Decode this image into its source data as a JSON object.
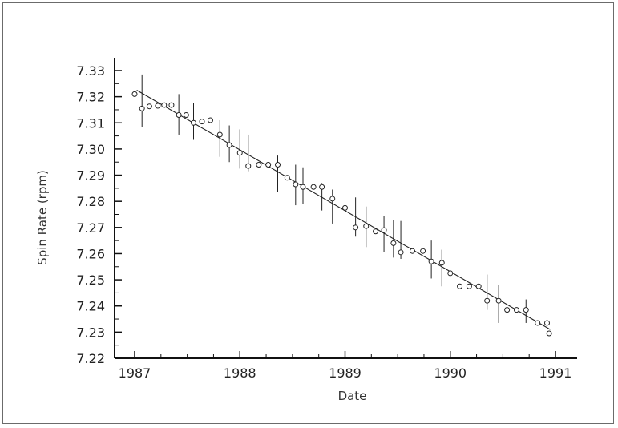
{
  "chart_data": {
    "type": "scatter",
    "title": "",
    "xlabel": "Date",
    "ylabel": "Spin Rate (rpm)",
    "xlim": [
      1986.9,
      1991.2
    ],
    "ylim": [
      7.22,
      7.335
    ],
    "x_ticks": [
      1987,
      1988,
      1989,
      1990,
      1991
    ],
    "x_tick_labels": [
      "1987",
      "1988",
      "1989",
      "1990",
      "1991"
    ],
    "y_ticks": [
      7.22,
      7.23,
      7.24,
      7.25,
      7.26,
      7.27,
      7.28,
      7.29,
      7.3,
      7.31,
      7.32,
      7.33
    ],
    "y_tick_labels": [
      "7.22",
      "7.23",
      "7.24",
      "7.25",
      "7.26",
      "7.27",
      "7.28",
      "7.29",
      "7.30",
      "7.31",
      "7.32",
      "7.33"
    ],
    "grid": false,
    "legend": false,
    "points": [
      {
        "x": 1987.0,
        "y": 7.321
      },
      {
        "x": 1987.07,
        "y": 7.3155,
        "err_lo": 7.3085,
        "err_hi": 7.3285
      },
      {
        "x": 1987.14,
        "y": 7.3163
      },
      {
        "x": 1987.22,
        "y": 7.3165
      },
      {
        "x": 1987.28,
        "y": 7.3168
      },
      {
        "x": 1987.35,
        "y": 7.3168
      },
      {
        "x": 1987.42,
        "y": 7.313,
        "err_lo": 7.3055,
        "err_hi": 7.321
      },
      {
        "x": 1987.49,
        "y": 7.313
      },
      {
        "x": 1987.56,
        "y": 7.31,
        "err_lo": 7.3035,
        "err_hi": 7.3175
      },
      {
        "x": 1987.64,
        "y": 7.3105
      },
      {
        "x": 1987.72,
        "y": 7.311
      },
      {
        "x": 1987.81,
        "y": 7.3055,
        "err_lo": 7.297,
        "err_hi": 7.311
      },
      {
        "x": 1987.9,
        "y": 7.3015,
        "err_lo": 7.295,
        "err_hi": 7.309
      },
      {
        "x": 1988.0,
        "y": 7.2985,
        "err_lo": 7.2925,
        "err_hi": 7.3075
      },
      {
        "x": 1988.08,
        "y": 7.2935,
        "err_lo": 7.2915,
        "err_hi": 7.3055
      },
      {
        "x": 1988.18,
        "y": 7.294
      },
      {
        "x": 1988.27,
        "y": 7.294
      },
      {
        "x": 1988.36,
        "y": 7.294,
        "err_lo": 7.2835,
        "err_hi": 7.2975
      },
      {
        "x": 1988.45,
        "y": 7.289
      },
      {
        "x": 1988.53,
        "y": 7.2865,
        "err_lo": 7.2785,
        "err_hi": 7.294
      },
      {
        "x": 1988.6,
        "y": 7.2855,
        "err_lo": 7.279,
        "err_hi": 7.293
      },
      {
        "x": 1988.7,
        "y": 7.2855
      },
      {
        "x": 1988.78,
        "y": 7.2855,
        "err_lo": 7.2765,
        "err_hi": 7.287
      },
      {
        "x": 1988.88,
        "y": 7.281,
        "err_lo": 7.2715,
        "err_hi": 7.2845
      },
      {
        "x": 1989.0,
        "y": 7.2775,
        "err_lo": 7.271,
        "err_hi": 7.282
      },
      {
        "x": 1989.1,
        "y": 7.27,
        "err_lo": 7.2665,
        "err_hi": 7.2815
      },
      {
        "x": 1989.2,
        "y": 7.2705,
        "err_lo": 7.2625,
        "err_hi": 7.278
      },
      {
        "x": 1989.29,
        "y": 7.2685
      },
      {
        "x": 1989.37,
        "y": 7.269,
        "err_lo": 7.2605,
        "err_hi": 7.2745
      },
      {
        "x": 1989.46,
        "y": 7.264,
        "err_lo": 7.2585,
        "err_hi": 7.273
      },
      {
        "x": 1989.53,
        "y": 7.2605,
        "err_lo": 7.258,
        "err_hi": 7.2725
      },
      {
        "x": 1989.64,
        "y": 7.261
      },
      {
        "x": 1989.74,
        "y": 7.261
      },
      {
        "x": 1989.82,
        "y": 7.257,
        "err_lo": 7.2505,
        "err_hi": 7.265
      },
      {
        "x": 1989.92,
        "y": 7.2565,
        "err_lo": 7.2475,
        "err_hi": 7.2615
      },
      {
        "x": 1990.0,
        "y": 7.2525
      },
      {
        "x": 1990.09,
        "y": 7.2475
      },
      {
        "x": 1990.18,
        "y": 7.2475
      },
      {
        "x": 1990.27,
        "y": 7.2475
      },
      {
        "x": 1990.35,
        "y": 7.242,
        "err_lo": 7.2385,
        "err_hi": 7.252
      },
      {
        "x": 1990.46,
        "y": 7.242,
        "err_lo": 7.2335,
        "err_hi": 7.248
      },
      {
        "x": 1990.54,
        "y": 7.2385
      },
      {
        "x": 1990.63,
        "y": 7.2385
      },
      {
        "x": 1990.72,
        "y": 7.2385,
        "err_lo": 7.2335,
        "err_hi": 7.2425
      },
      {
        "x": 1990.83,
        "y": 7.2335
      },
      {
        "x": 1990.92,
        "y": 7.2335
      },
      {
        "x": 1990.94,
        "y": 7.2295
      }
    ],
    "fit_line": {
      "x": [
        1987.02,
        1990.95
      ],
      "y": [
        7.3225,
        7.231
      ]
    }
  }
}
